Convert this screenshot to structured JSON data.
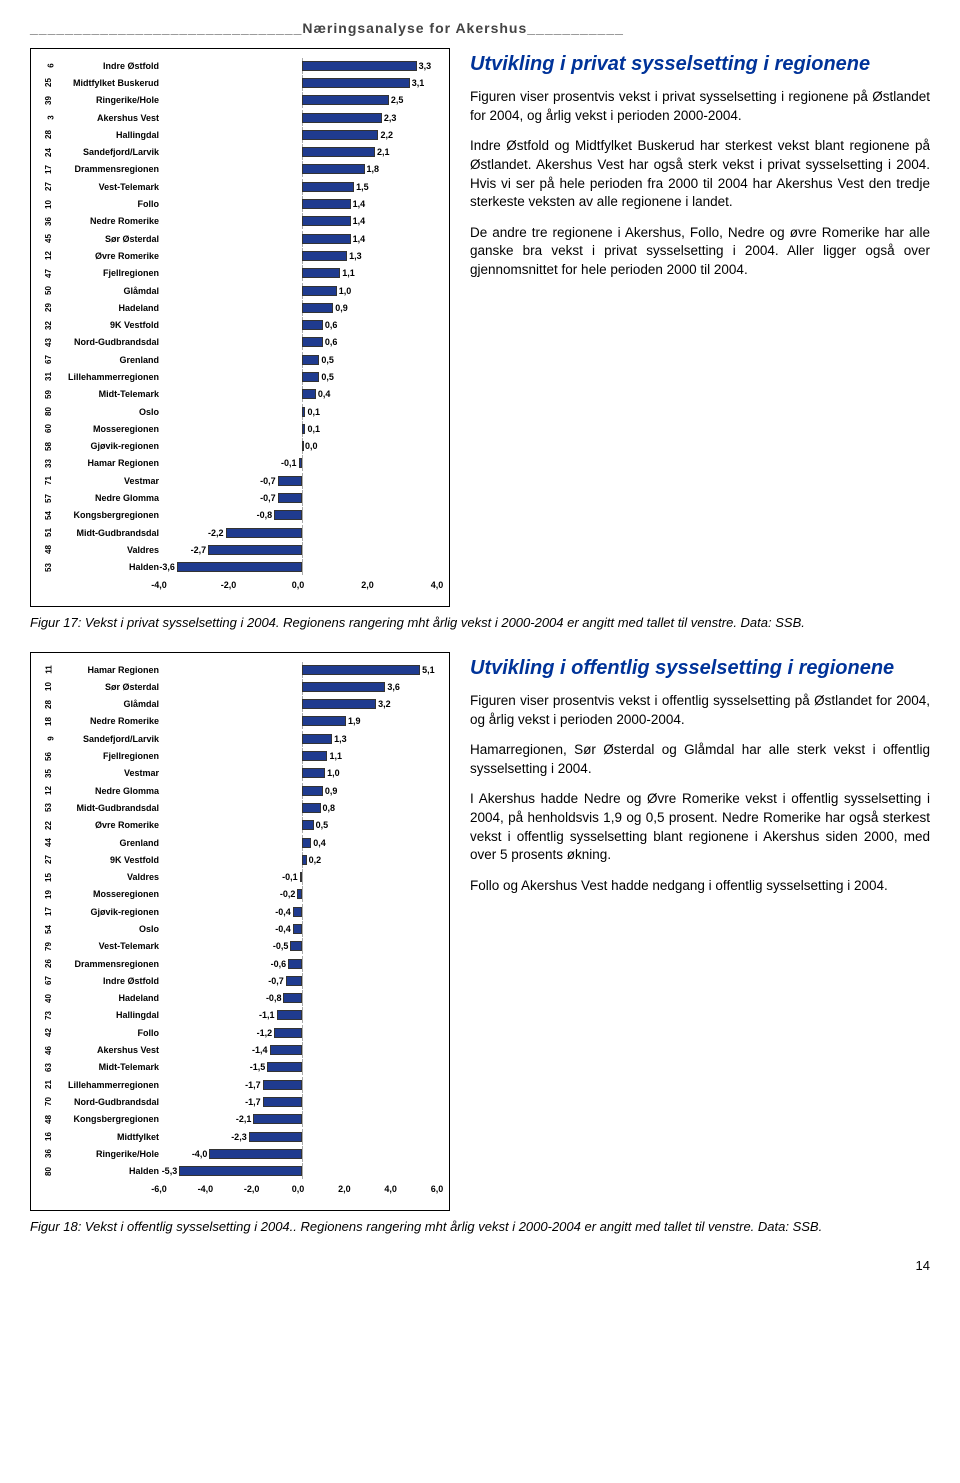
{
  "header": "_______________________________Næringsanalyse for Akershus___________",
  "colors": {
    "bar_fill": "#1f3b8f",
    "bar_border": "#333333",
    "title_color": "#003399",
    "border": "#000000",
    "grid": "#aaaaaa"
  },
  "chart1": {
    "type": "bar_horizontal",
    "x_min": -4.0,
    "x_max": 4.0,
    "x_ticks": [
      "-4,0",
      "-2,0",
      "0,0",
      "2,0",
      "4,0"
    ],
    "label_width": 106,
    "rows": [
      {
        "rank": "6",
        "label": "Indre Østfold",
        "value": 3.3,
        "text": "3,3"
      },
      {
        "rank": "25",
        "label": "Midtfylket Buskerud",
        "value": 3.1,
        "text": "3,1"
      },
      {
        "rank": "39",
        "label": "Ringerike/Hole",
        "value": 2.5,
        "text": "2,5"
      },
      {
        "rank": "3",
        "label": "Akershus Vest",
        "value": 2.3,
        "text": "2,3"
      },
      {
        "rank": "28",
        "label": "Hallingdal",
        "value": 2.2,
        "text": "2,2"
      },
      {
        "rank": "24",
        "label": "Sandefjord/Larvik",
        "value": 2.1,
        "text": "2,1"
      },
      {
        "rank": "17",
        "label": "Drammensregionen",
        "value": 1.8,
        "text": "1,8"
      },
      {
        "rank": "27",
        "label": "Vest-Telemark",
        "value": 1.5,
        "text": "1,5"
      },
      {
        "rank": "10",
        "label": "Follo",
        "value": 1.4,
        "text": "1,4"
      },
      {
        "rank": "36",
        "label": "Nedre Romerike",
        "value": 1.4,
        "text": "1,4"
      },
      {
        "rank": "45",
        "label": "Sør Østerdal",
        "value": 1.4,
        "text": "1,4"
      },
      {
        "rank": "12",
        "label": "Øvre Romerike",
        "value": 1.3,
        "text": "1,3"
      },
      {
        "rank": "47",
        "label": "Fjellregionen",
        "value": 1.1,
        "text": "1,1"
      },
      {
        "rank": "50",
        "label": "Glåmdal",
        "value": 1.0,
        "text": "1,0"
      },
      {
        "rank": "29",
        "label": "Hadeland",
        "value": 0.9,
        "text": "0,9"
      },
      {
        "rank": "32",
        "label": "9K Vestfold",
        "value": 0.6,
        "text": "0,6"
      },
      {
        "rank": "43",
        "label": "Nord-Gudbrandsdal",
        "value": 0.6,
        "text": "0,6"
      },
      {
        "rank": "67",
        "label": "Grenland",
        "value": 0.5,
        "text": "0,5"
      },
      {
        "rank": "31",
        "label": "Lillehammerregionen",
        "value": 0.5,
        "text": "0,5"
      },
      {
        "rank": "59",
        "label": "Midt-Telemark",
        "value": 0.4,
        "text": "0,4"
      },
      {
        "rank": "80",
        "label": "Oslo",
        "value": 0.1,
        "text": "0,1"
      },
      {
        "rank": "60",
        "label": "Mosseregionen",
        "value": 0.1,
        "text": "0,1"
      },
      {
        "rank": "58",
        "label": "Gjøvik-regionen",
        "value": 0.0,
        "text": "0,0"
      },
      {
        "rank": "33",
        "label": "Hamar Regionen",
        "value": -0.1,
        "text": "-0,1"
      },
      {
        "rank": "71",
        "label": "Vestmar",
        "value": -0.7,
        "text": "-0,7"
      },
      {
        "rank": "57",
        "label": "Nedre Glomma",
        "value": -0.7,
        "text": "-0,7"
      },
      {
        "rank": "54",
        "label": "Kongsbergregionen",
        "value": -0.8,
        "text": "-0,8"
      },
      {
        "rank": "51",
        "label": "Midt-Gudbrandsdal",
        "value": -2.2,
        "text": "-2,2"
      },
      {
        "rank": "48",
        "label": "Valdres",
        "value": -2.7,
        "text": "-2,7"
      },
      {
        "rank": "53",
        "label": "Halden",
        "value": -3.6,
        "text": "-3,6"
      }
    ]
  },
  "chart2": {
    "type": "bar_horizontal",
    "x_min": -6.0,
    "x_max": 6.0,
    "x_ticks": [
      "-6,0",
      "-4,0",
      "-2,0",
      "0,0",
      "2,0",
      "4,0",
      "6,0"
    ],
    "label_width": 106,
    "rows": [
      {
        "rank": "11",
        "label": "Hamar Regionen",
        "value": 5.1,
        "text": "5,1"
      },
      {
        "rank": "10",
        "label": "Sør Østerdal",
        "value": 3.6,
        "text": "3,6"
      },
      {
        "rank": "28",
        "label": "Glåmdal",
        "value": 3.2,
        "text": "3,2"
      },
      {
        "rank": "18",
        "label": "Nedre Romerike",
        "value": 1.9,
        "text": "1,9"
      },
      {
        "rank": "9",
        "label": "Sandefjord/Larvik",
        "value": 1.3,
        "text": "1,3"
      },
      {
        "rank": "56",
        "label": "Fjellregionen",
        "value": 1.1,
        "text": "1,1"
      },
      {
        "rank": "35",
        "label": "Vestmar",
        "value": 1.0,
        "text": "1,0"
      },
      {
        "rank": "12",
        "label": "Nedre Glomma",
        "value": 0.9,
        "text": "0,9"
      },
      {
        "rank": "53",
        "label": "Midt-Gudbrandsdal",
        "value": 0.8,
        "text": "0,8"
      },
      {
        "rank": "22",
        "label": "Øvre Romerike",
        "value": 0.5,
        "text": "0,5"
      },
      {
        "rank": "44",
        "label": "Grenland",
        "value": 0.4,
        "text": "0,4"
      },
      {
        "rank": "27",
        "label": "9K Vestfold",
        "value": 0.2,
        "text": "0,2"
      },
      {
        "rank": "15",
        "label": "Valdres",
        "value": -0.1,
        "text": "-0,1"
      },
      {
        "rank": "19",
        "label": "Mosseregionen",
        "value": -0.2,
        "text": "-0,2"
      },
      {
        "rank": "17",
        "label": "Gjøvik-regionen",
        "value": -0.4,
        "text": "-0,4"
      },
      {
        "rank": "54",
        "label": "Oslo",
        "value": -0.4,
        "text": "-0,4"
      },
      {
        "rank": "79",
        "label": "Vest-Telemark",
        "value": -0.5,
        "text": "-0,5"
      },
      {
        "rank": "26",
        "label": "Drammensregionen",
        "value": -0.6,
        "text": "-0,6"
      },
      {
        "rank": "67",
        "label": "Indre Østfold",
        "value": -0.7,
        "text": "-0,7"
      },
      {
        "rank": "40",
        "label": "Hadeland",
        "value": -0.8,
        "text": "-0,8"
      },
      {
        "rank": "73",
        "label": "Hallingdal",
        "value": -1.1,
        "text": "-1,1"
      },
      {
        "rank": "42",
        "label": "Follo",
        "value": -1.2,
        "text": "-1,2"
      },
      {
        "rank": "46",
        "label": "Akershus Vest",
        "value": -1.4,
        "text": "-1,4"
      },
      {
        "rank": "63",
        "label": "Midt-Telemark",
        "value": -1.5,
        "text": "-1,5"
      },
      {
        "rank": "21",
        "label": "Lillehammerregionen",
        "value": -1.7,
        "text": "-1,7"
      },
      {
        "rank": "70",
        "label": "Nord-Gudbrandsdal",
        "value": -1.7,
        "text": "-1,7"
      },
      {
        "rank": "48",
        "label": "Kongsbergregionen",
        "value": -2.1,
        "text": "-2,1"
      },
      {
        "rank": "16",
        "label": "Midtfylket",
        "value": -2.3,
        "text": "-2,3"
      },
      {
        "rank": "36",
        "label": "Ringerike/Hole",
        "value": -4.0,
        "text": "-4,0"
      },
      {
        "rank": "80",
        "label": "Halden",
        "value": -5.3,
        "text": "-5,3"
      }
    ]
  },
  "text1": {
    "title": "Utvikling i privat sysselsetting i regionene",
    "p1": "Figuren viser prosentvis vekst i privat sysselsetting i regionene på Østlandet for 2004, og årlig vekst i perioden 2000-2004.",
    "p2": "Indre Østfold og Midtfylket Buskerud har sterkest vekst blant regionene på Østlandet. Akershus Vest har også sterk vekst i privat sysselsetting i 2004. Hvis vi ser på hele perioden fra 2000 til 2004 har Akershus Vest den tredje sterkeste veksten av alle regionene i landet.",
    "p3": "De andre tre regionene i Akershus, Follo, Nedre og øvre Romerike har alle ganske bra vekst i privat sysselsetting i 2004. Aller ligger også over gjennomsnittet for hele perioden 2000 til 2004."
  },
  "caption1": "Figur 17: Vekst i privat sysselsetting i 2004. Regionens rangering mht årlig vekst i 2000-2004 er angitt med tallet til venstre.  Data: SSB.",
  "text2": {
    "title": "Utvikling i offentlig sysselsetting i regionene",
    "p1": "Figuren viser prosentvis vekst i offentlig sysselsetting på Østlandet for 2004, og årlig vekst i perioden 2000-2004.",
    "p2": "Hamarregionen, Sør Østerdal og Glåmdal har alle sterk vekst i offentlig sysselsetting i 2004.",
    "p3": "I Akershus hadde Nedre og Øvre Romerike vekst i offentlig sysselsetting i 2004, på henholdsvis 1,9 og 0,5 prosent.  Nedre Romerike har også sterkest vekst i offentlig sysselsetting blant regionene i Akershus siden 2000, med over 5 prosents økning.",
    "p4": "Follo og Akershus Vest hadde nedgang i offentlig sysselsetting i 2004."
  },
  "caption2": "Figur 18: Vekst i offentlig sysselsetting i 2004.. Regionens rangering mht årlig vekst i 2000-2004 er angitt med tallet til venstre.  Data: SSB.",
  "page_number": "14"
}
